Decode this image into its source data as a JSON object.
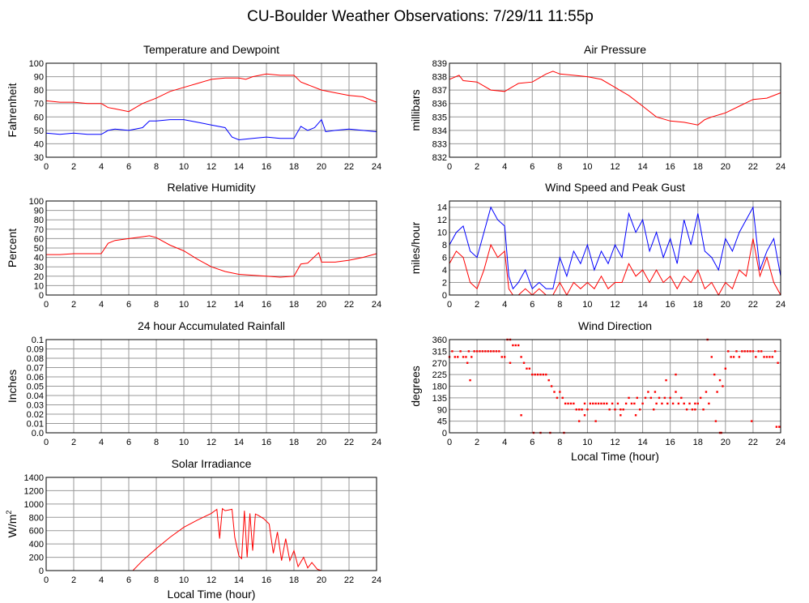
{
  "page_title": "CU-Boulder Weather Observations: 7/29/11 11:55p",
  "colors": {
    "red": "#ff0000",
    "blue": "#0000ff",
    "grid": "#999999",
    "frame": "#000000"
  },
  "chart_data": [
    {
      "id": "temp",
      "type": "line",
      "title": "Temperature and Dewpoint",
      "xlabel": "",
      "ylabel": "Fahrenheit",
      "xlim": [
        0,
        24
      ],
      "ylim": [
        30,
        100
      ],
      "xticks": [
        0,
        2,
        4,
        6,
        8,
        10,
        12,
        14,
        16,
        18,
        20,
        22,
        24
      ],
      "yticks": [
        30,
        40,
        50,
        60,
        70,
        80,
        90,
        100
      ],
      "series": [
        {
          "color": "#ff0000",
          "x": [
            0,
            1,
            2,
            3,
            4,
            4.5,
            5,
            6,
            6.5,
            7,
            8,
            9,
            10,
            11,
            12,
            13,
            14,
            14.5,
            15,
            16,
            17,
            18,
            18.5,
            19,
            20,
            21,
            22,
            23,
            24
          ],
          "y": [
            72,
            71,
            71,
            70,
            70,
            67,
            66,
            64,
            67,
            70,
            74,
            79,
            82,
            85,
            88,
            89,
            89,
            88,
            90,
            92,
            91,
            91,
            86,
            84,
            80,
            78,
            76,
            75,
            71
          ]
        },
        {
          "color": "#0000ff",
          "x": [
            0,
            1,
            2,
            3,
            4,
            4.5,
            5,
            6,
            7,
            7.5,
            8,
            9,
            10,
            11,
            12,
            13,
            13.5,
            14,
            15,
            16,
            17,
            18,
            18.5,
            19,
            19.5,
            20,
            20.3,
            21,
            22,
            23,
            24
          ],
          "y": [
            48,
            47,
            48,
            47,
            47,
            50,
            51,
            50,
            52,
            57,
            57,
            58,
            58,
            56,
            54,
            52,
            45,
            43,
            44,
            45,
            44,
            44,
            53,
            50,
            52,
            58,
            49,
            50,
            51,
            50,
            49
          ]
        }
      ]
    },
    {
      "id": "pressure",
      "type": "line",
      "title": "Air Pressure",
      "xlabel": "",
      "ylabel": "millibars",
      "xlim": [
        0,
        24
      ],
      "ylim": [
        832,
        839
      ],
      "xticks": [
        0,
        2,
        4,
        6,
        8,
        10,
        12,
        14,
        16,
        18,
        20,
        22,
        24
      ],
      "yticks": [
        832,
        833,
        834,
        835,
        836,
        837,
        838,
        839
      ],
      "series": [
        {
          "color": "#ff0000",
          "x": [
            0,
            0.7,
            1,
            2,
            3,
            4,
            4.5,
            5,
            6,
            7,
            7.5,
            8,
            9,
            10,
            11,
            12,
            13,
            14,
            15,
            16,
            17,
            18,
            18.5,
            19,
            20,
            21,
            22,
            23,
            24
          ],
          "y": [
            837.8,
            838.1,
            837.7,
            837.6,
            837,
            836.9,
            837.2,
            837.5,
            837.6,
            838.2,
            838.4,
            838.2,
            838.1,
            838,
            837.8,
            837.2,
            836.6,
            835.8,
            835,
            834.7,
            834.6,
            834.4,
            834.8,
            835,
            835.3,
            835.8,
            836.3,
            836.4,
            836.8
          ]
        }
      ]
    },
    {
      "id": "humidity",
      "type": "line",
      "title": "Relative Humidity",
      "xlabel": "",
      "ylabel": "Percent",
      "xlim": [
        0,
        24
      ],
      "ylim": [
        0,
        100
      ],
      "xticks": [
        0,
        2,
        4,
        6,
        8,
        10,
        12,
        14,
        16,
        18,
        20,
        22,
        24
      ],
      "yticks": [
        0,
        10,
        20,
        30,
        40,
        50,
        60,
        70,
        80,
        90,
        100
      ],
      "series": [
        {
          "color": "#ff0000",
          "x": [
            0,
            1,
            2,
            3,
            4,
            4.5,
            5,
            6,
            7,
            7.5,
            8,
            9,
            10,
            11,
            12,
            13,
            14,
            15,
            16,
            17,
            18,
            18.5,
            19,
            19.8,
            20,
            21,
            22,
            23,
            24
          ],
          "y": [
            43,
            43,
            44,
            44,
            44,
            55,
            58,
            60,
            62,
            63,
            61,
            53,
            47,
            38,
            30,
            25,
            22,
            21,
            20,
            19,
            20,
            33,
            34,
            45,
            35,
            35,
            37,
            40,
            44
          ]
        }
      ]
    },
    {
      "id": "wind",
      "type": "line",
      "title": "Wind Speed and Peak Gust",
      "xlabel": "",
      "ylabel": "miles/hour",
      "xlim": [
        0,
        24
      ],
      "ylim": [
        0,
        15
      ],
      "xticks": [
        0,
        2,
        4,
        6,
        8,
        10,
        12,
        14,
        16,
        18,
        20,
        22,
        24
      ],
      "yticks": [
        0,
        2,
        4,
        6,
        8,
        10,
        12,
        14
      ],
      "series": [
        {
          "color": "#0000ff",
          "x": [
            0,
            0.5,
            1,
            1.5,
            2,
            2.5,
            3,
            3.5,
            4,
            4.3,
            4.6,
            5,
            5.5,
            6,
            6.5,
            7,
            7.5,
            8,
            8.5,
            9,
            9.5,
            10,
            10.5,
            11,
            11.5,
            12,
            12.5,
            13,
            13.5,
            14,
            14.5,
            15,
            15.5,
            16,
            16.5,
            17,
            17.5,
            18,
            18.5,
            19,
            19.5,
            20,
            20.5,
            21,
            21.5,
            22,
            22.5,
            23,
            23.5,
            24
          ],
          "y": [
            8,
            10,
            11,
            7,
            6,
            10,
            14,
            12,
            11,
            3,
            1,
            2,
            4,
            1,
            2,
            1,
            1,
            6,
            3,
            7,
            5,
            8,
            4,
            7,
            5,
            8,
            6,
            13,
            10,
            12,
            7,
            10,
            6,
            9,
            5,
            12,
            8,
            13,
            7,
            6,
            4,
            9,
            7,
            10,
            12,
            14,
            4,
            7,
            9,
            3
          ]
        },
        {
          "color": "#ff0000",
          "x": [
            0,
            0.5,
            1,
            1.5,
            2,
            2.5,
            3,
            3.5,
            4,
            4.3,
            4.6,
            5,
            5.5,
            6,
            6.5,
            7,
            7.5,
            8,
            8.5,
            9,
            9.5,
            10,
            10.5,
            11,
            11.5,
            12,
            12.5,
            13,
            13.5,
            14,
            14.5,
            15,
            15.5,
            16,
            16.5,
            17,
            17.5,
            18,
            18.5,
            19,
            19.5,
            20,
            20.5,
            21,
            21.5,
            22,
            22.5,
            23,
            23.5,
            24
          ],
          "y": [
            5,
            7,
            6,
            2,
            1,
            4,
            8,
            6,
            7,
            1,
            0,
            0,
            1,
            0,
            1,
            0,
            0,
            2,
            0,
            2,
            1,
            2,
            1,
            3,
            1,
            2,
            2,
            5,
            3,
            4,
            2,
            4,
            2,
            3,
            1,
            3,
            2,
            4,
            1,
            2,
            0,
            2,
            1,
            4,
            3,
            9,
            3,
            6,
            2,
            0
          ]
        }
      ]
    },
    {
      "id": "rain",
      "type": "line",
      "title": "24 hour Accumulated Rainfall",
      "xlabel": "",
      "ylabel": "Inches",
      "xlim": [
        0,
        24
      ],
      "ylim": [
        0,
        0.1
      ],
      "xticks": [
        0,
        2,
        4,
        6,
        8,
        10,
        12,
        14,
        16,
        18,
        20,
        22,
        24
      ],
      "yticks": [
        0,
        0.01,
        0.02,
        0.03,
        0.04,
        0.05,
        0.06,
        0.07,
        0.08,
        0.09,
        0.1
      ],
      "yticklabels": [
        "0.0",
        "0.01",
        "0.02",
        "0.03",
        "0.04",
        "0.05",
        "0.06",
        "0.07",
        "0.08",
        "0.09",
        "0.1"
      ],
      "series": [
        {
          "color": "#ff0000",
          "x": [
            0,
            24
          ],
          "y": [
            0,
            0
          ]
        }
      ]
    },
    {
      "id": "winddir",
      "type": "scatter",
      "title": "Wind Direction",
      "xlabel": "Local Time (hour)",
      "ylabel": "degrees",
      "xlim": [
        0,
        24
      ],
      "ylim": [
        0,
        360
      ],
      "xticks": [
        0,
        2,
        4,
        6,
        8,
        10,
        12,
        14,
        16,
        18,
        20,
        22,
        24
      ],
      "yticks": [
        0,
        45,
        90,
        135,
        180,
        225,
        270,
        315,
        360
      ],
      "series": [
        {
          "color": "#ff0000",
          "x": [
            0,
            0.2,
            0.4,
            0.6,
            0.8,
            1,
            1.2,
            1.4,
            1.6,
            1.8,
            2,
            2.2,
            2.4,
            2.6,
            2.8,
            3,
            3.2,
            3.4,
            3.6,
            3.8,
            4,
            4.2,
            4.4,
            4.6,
            4.8,
            5,
            5.2,
            5.4,
            5.6,
            5.8,
            6,
            6.2,
            6.4,
            6.6,
            6.8,
            7,
            7.2,
            7.4,
            7.6,
            7.8,
            8,
            8.2,
            8.4,
            8.6,
            8.8,
            9,
            9.2,
            9.4,
            9.6,
            9.8,
            10,
            10.2,
            10.4,
            10.6,
            10.8,
            11,
            11.2,
            11.4,
            11.6,
            11.8,
            12,
            12.2,
            12.4,
            12.6,
            12.8,
            13,
            13.2,
            13.4,
            13.6,
            13.8,
            14,
            14.2,
            14.4,
            14.6,
            14.8,
            15,
            15.2,
            15.4,
            15.6,
            15.8,
            16,
            16.2,
            16.4,
            16.6,
            16.8,
            17,
            17.2,
            17.4,
            17.6,
            17.8,
            18,
            18.2,
            18.4,
            18.6,
            18.8,
            19,
            19.2,
            19.4,
            19.6,
            19.8,
            20,
            20.2,
            20.4,
            20.6,
            20.8,
            21,
            21.2,
            21.4,
            21.6,
            21.8,
            22,
            22.2,
            22.4,
            22.6,
            22.8,
            23,
            23.2,
            23.4,
            23.6,
            23.8,
            1.3,
            1.5,
            4.4,
            5.2,
            6.1,
            6.6,
            7.3,
            8.3,
            9.4,
            9.8,
            10.6,
            12.4,
            13.5,
            14.9,
            15.7,
            16.4,
            17.8,
            18.7,
            19.3,
            19.6,
            19.7,
            21.9,
            23.7,
            23.9
          ],
          "y": [
            293,
            315,
            293,
            293,
            315,
            293,
            293,
            315,
            293,
            315,
            315,
            315,
            315,
            315,
            315,
            315,
            315,
            315,
            315,
            293,
            293,
            360,
            360,
            338,
            338,
            338,
            293,
            270,
            248,
            248,
            225,
            225,
            225,
            225,
            225,
            225,
            203,
            180,
            158,
            135,
            158,
            135,
            113,
            113,
            113,
            113,
            90,
            90,
            90,
            113,
            90,
            113,
            113,
            113,
            113,
            113,
            113,
            113,
            90,
            113,
            90,
            113,
            90,
            90,
            113,
            135,
            113,
            113,
            135,
            90,
            113,
            135,
            158,
            135,
            90,
            113,
            135,
            113,
            135,
            113,
            135,
            113,
            158,
            113,
            135,
            113,
            90,
            113,
            90,
            113,
            113,
            135,
            90,
            158,
            113,
            293,
            225,
            158,
            203,
            180,
            248,
            315,
            293,
            293,
            315,
            293,
            315,
            315,
            315,
            315,
            315,
            293,
            315,
            315,
            293,
            293,
            293,
            293,
            315,
            270,
            270,
            203,
            270,
            68,
            0,
            0,
            0,
            0,
            45,
            68,
            45,
            68,
            68,
            158,
            203,
            225,
            90,
            360,
            45,
            0,
            0,
            45,
            23,
            23
          ]
        }
      ]
    },
    {
      "id": "solar",
      "type": "line",
      "title": "Solar Irradiance",
      "xlabel": "Local Time (hour)",
      "ylabel": "W/m",
      "ylabel_sup": "2",
      "xlim": [
        0,
        24
      ],
      "ylim": [
        0,
        1400
      ],
      "xticks": [
        0,
        2,
        4,
        6,
        8,
        10,
        12,
        14,
        16,
        18,
        20,
        22,
        24
      ],
      "yticks": [
        0,
        200,
        400,
        600,
        800,
        1000,
        1200,
        1400
      ],
      "series": [
        {
          "color": "#ff0000",
          "x": [
            0,
            6.3,
            7,
            8,
            9,
            10,
            11,
            12,
            12.4,
            12.6,
            12.8,
            13,
            13.5,
            13.7,
            14,
            14.2,
            14.4,
            14.6,
            14.8,
            15,
            15.2,
            15.4,
            15.8,
            16.2,
            16.5,
            16.8,
            17.1,
            17.4,
            17.7,
            18,
            18.3,
            18.7,
            19,
            19.3,
            19.7,
            20,
            24
          ],
          "y": [
            0,
            0,
            150,
            330,
            500,
            650,
            760,
            860,
            920,
            480,
            930,
            900,
            920,
            500,
            220,
            180,
            900,
            200,
            860,
            300,
            850,
            830,
            780,
            700,
            260,
            580,
            150,
            480,
            150,
            300,
            60,
            200,
            40,
            120,
            20,
            0,
            0
          ]
        }
      ]
    }
  ]
}
